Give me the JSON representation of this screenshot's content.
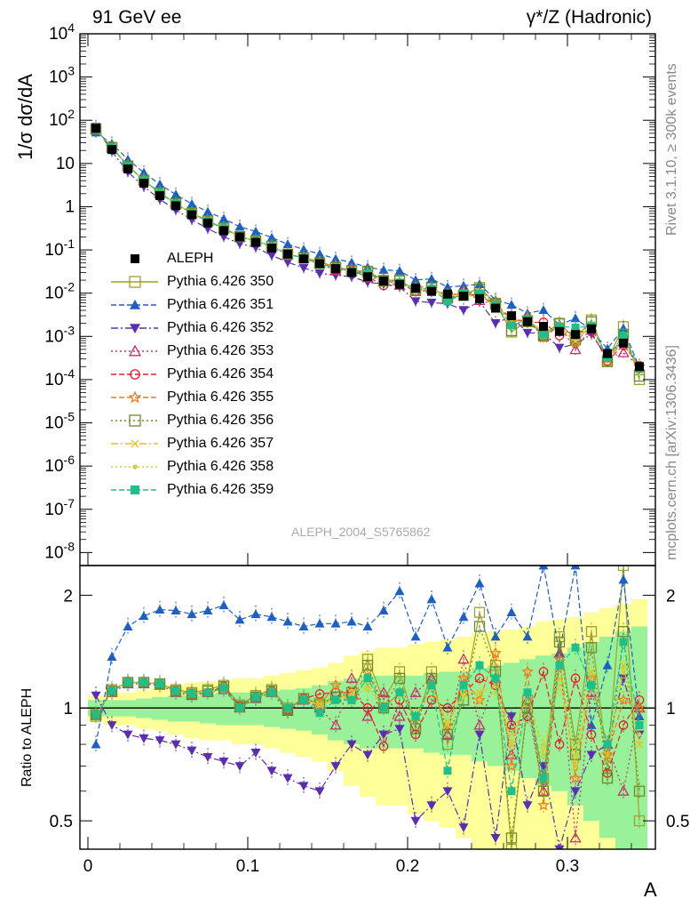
{
  "header": {
    "left_title": "91 GeV ee",
    "right_title": "γ*/Z (Hadronic)",
    "side_note_top": "Rivet 3.1.10, ≥ 300k events",
    "side_note_bottom": "mcplots.cern.ch [arXiv:1306.3436]",
    "analysis_tag": "ALEPH_2004_S5765862"
  },
  "axes": {
    "main_ylabel": "1/σ dσ/dA",
    "ratio_ylabel": "Ratio to ALEPH",
    "xlabel": "A",
    "main_yticks": [
      "10^4",
      "10^3",
      "10^2",
      "10",
      "1",
      "10^-1",
      "10^-2",
      "10^-3",
      "10^-4",
      "10^-5",
      "10^-6",
      "10^-7",
      "10^-8"
    ],
    "ratio_yticks": [
      "0.5",
      "1",
      "2"
    ],
    "xticks": [
      "0",
      "0.1",
      "0.2",
      "0.3"
    ]
  },
  "chart_data": {
    "type": "scatter",
    "x_scale": "linear",
    "main_y_scale": "log",
    "ratio_y_scale": "log",
    "xlim": [
      -0.005,
      0.355
    ],
    "main_ylim": [
      5e-09,
      10000
    ],
    "ratio_ylim": [
      0.42,
      2.4
    ],
    "x": [
      0.005,
      0.015,
      0.025,
      0.035,
      0.045,
      0.055,
      0.065,
      0.075,
      0.085,
      0.095,
      0.105,
      0.115,
      0.125,
      0.135,
      0.145,
      0.155,
      0.165,
      0.175,
      0.185,
      0.195,
      0.205,
      0.215,
      0.225,
      0.235,
      0.245,
      0.255,
      0.265,
      0.275,
      0.285,
      0.295,
      0.305,
      0.315,
      0.325,
      0.335,
      0.345
    ],
    "reference": {
      "name": "ALEPH",
      "values": [
        65,
        21,
        7.5,
        3.5,
        1.8,
        1.05,
        0.65,
        0.42,
        0.28,
        0.2,
        0.15,
        0.11,
        0.08,
        0.062,
        0.048,
        0.037,
        0.03,
        0.024,
        0.019,
        0.016,
        0.013,
        0.011,
        0.0095,
        0.0085,
        0.0075,
        0.0045,
        0.003,
        0.0022,
        0.0017,
        0.0013,
        0.0011,
        0.0015,
        0.0004,
        0.0007,
        0.0002
      ],
      "ratio_band_inner": [
        0.05,
        0.05,
        0.05,
        0.06,
        0.07,
        0.08,
        0.08,
        0.09,
        0.1,
        0.1,
        0.1,
        0.11,
        0.12,
        0.13,
        0.15,
        0.18,
        0.2,
        0.22,
        0.22,
        0.22,
        0.22,
        0.24,
        0.25,
        0.25,
        0.28,
        0.3,
        0.32,
        0.35,
        0.38,
        0.4,
        0.45,
        0.5,
        0.55,
        0.6,
        0.65
      ],
      "ratio_band_outer": [
        0.08,
        0.1,
        0.1,
        0.12,
        0.13,
        0.15,
        0.17,
        0.18,
        0.18,
        0.2,
        0.2,
        0.22,
        0.24,
        0.26,
        0.28,
        0.32,
        0.38,
        0.42,
        0.45,
        0.45,
        0.48,
        0.5,
        0.52,
        0.55,
        0.58,
        0.6,
        0.62,
        0.65,
        0.7,
        0.72,
        0.75,
        0.8,
        0.85,
        0.9,
        0.95
      ]
    },
    "series": [
      {
        "name": "Pythia 6.426 350",
        "color": "#a0a030",
        "marker": "open-square",
        "line": "solid",
        "ratio": [
          0.95,
          1.12,
          1.17,
          1.17,
          1.16,
          1.12,
          1.1,
          1.12,
          1.15,
          1.02,
          1.08,
          1.12,
          1.0,
          1.06,
          1.03,
          1.07,
          1.08,
          1.35,
          1.05,
          1.25,
          0.9,
          1.25,
          0.8,
          1.05,
          1.8,
          1.3,
          0.42,
          1.05,
          0.65,
          1.55,
          0.8,
          1.6,
          0.7,
          2.4,
          0.5
        ]
      },
      {
        "name": "Pythia 6.426 351",
        "color": "#1f5fbf",
        "marker": "filled-triangle-up",
        "line": "dashed",
        "ratio": [
          0.8,
          1.37,
          1.65,
          1.76,
          1.83,
          1.82,
          1.78,
          1.82,
          1.88,
          1.72,
          1.78,
          1.75,
          1.7,
          1.65,
          1.68,
          1.68,
          1.7,
          1.65,
          1.82,
          2.05,
          1.55,
          1.95,
          1.45,
          1.75,
          2.15,
          1.55,
          1.8,
          1.55,
          2.4,
          1.4,
          2.4,
          0.9,
          1.3,
          2.2,
          0.95
        ]
      },
      {
        "name": "Pythia 6.426 352",
        "color": "#5a2fae",
        "marker": "filled-triangle-down",
        "line": "dashdot",
        "ratio": [
          1.08,
          0.9,
          0.85,
          0.83,
          0.82,
          0.8,
          0.77,
          0.74,
          0.72,
          0.7,
          0.76,
          0.68,
          0.65,
          0.62,
          0.6,
          0.7,
          0.8,
          0.75,
          0.85,
          0.88,
          0.5,
          0.55,
          0.6,
          0.48,
          0.85,
          0.45,
          0.95,
          0.55,
          0.7,
          0.42,
          0.6,
          0.75,
          0.8,
          1.2,
          0.85
        ]
      },
      {
        "name": "Pythia 6.426 353",
        "color": "#c0306a",
        "marker": "open-triangle-up",
        "line": "dotted",
        "ratio": [
          0.96,
          1.1,
          1.16,
          1.16,
          1.15,
          1.1,
          1.08,
          1.1,
          1.12,
          1.0,
          1.06,
          1.1,
          0.98,
          1.05,
          1.0,
          0.9,
          1.2,
          0.95,
          1.1,
          0.95,
          1.1,
          1.2,
          0.85,
          1.35,
          0.9,
          1.2,
          0.75,
          1.05,
          0.6,
          1.4,
          0.45,
          1.1,
          0.8,
          0.6,
          1.0
        ]
      },
      {
        "name": "Pythia 6.426 354",
        "color": "#e0202a",
        "marker": "open-circle",
        "line": "dashed",
        "ratio": [
          0.96,
          1.11,
          1.17,
          1.17,
          1.16,
          1.11,
          1.09,
          1.1,
          1.14,
          1.01,
          1.07,
          1.11,
          0.99,
          1.06,
          1.09,
          1.1,
          1.1,
          1.0,
          0.79,
          1.05,
          0.85,
          1.05,
          1.0,
          1.1,
          1.2,
          1.15,
          0.9,
          0.95,
          1.25,
          0.8,
          1.2,
          0.85,
          0.67,
          0.9,
          1.05
        ]
      },
      {
        "name": "Pythia 6.426 355",
        "color": "#f07a1a",
        "marker": "star",
        "line": "dashed",
        "ratio": [
          0.96,
          1.11,
          1.17,
          1.17,
          1.16,
          1.11,
          1.09,
          1.1,
          1.13,
          1.0,
          1.07,
          1.1,
          1.0,
          1.05,
          1.02,
          1.15,
          1.05,
          1.25,
          1.0,
          1.1,
          0.95,
          1.15,
          0.9,
          1.2,
          1.05,
          1.4,
          0.7,
          1.25,
          0.55,
          1.35,
          0.65,
          1.2,
          0.75,
          1.05,
          1.0
        ]
      },
      {
        "name": "Pythia 6.426 356",
        "color": "#6b8c2a",
        "marker": "open-square",
        "line": "dotted",
        "ratio": [
          0.96,
          1.11,
          1.17,
          1.17,
          1.16,
          1.11,
          1.09,
          1.11,
          1.14,
          1.01,
          1.07,
          1.11,
          0.99,
          1.06,
          1.02,
          1.07,
          1.1,
          1.3,
          1.0,
          1.2,
          0.88,
          1.2,
          0.85,
          1.05,
          1.65,
          1.25,
          0.45,
          1.0,
          0.6,
          1.5,
          0.75,
          1.45,
          0.65,
          1.6,
          0.6
        ]
      },
      {
        "name": "Pythia 6.426 357",
        "color": "#e6c21a",
        "marker": "cross",
        "line": "dashdot",
        "ratio": [
          0.96,
          1.11,
          1.17,
          1.17,
          1.16,
          1.11,
          1.09,
          1.1,
          1.13,
          1.0,
          1.07,
          1.1,
          1.0,
          1.05,
          1.02,
          1.05,
          1.1,
          1.15,
          1.0,
          1.1,
          0.95,
          1.15,
          0.9,
          1.1,
          1.1,
          1.15,
          0.8,
          1.1,
          0.75,
          1.2,
          0.7,
          1.25,
          0.75,
          1.3,
          0.8
        ]
      },
      {
        "name": "Pythia 6.426 358",
        "color": "#c9d43a",
        "marker": "dot",
        "line": "dotted",
        "ratio": [
          0.96,
          1.11,
          1.17,
          1.17,
          1.16,
          1.11,
          1.09,
          1.1,
          1.13,
          1.0,
          1.07,
          1.1,
          1.0,
          1.05,
          1.02,
          1.05,
          1.08,
          1.12,
          1.0,
          1.08,
          0.97,
          1.12,
          0.92,
          1.08,
          1.05,
          1.1,
          0.85,
          1.05,
          0.8,
          1.15,
          0.75,
          1.2,
          0.8,
          1.25,
          0.85
        ]
      },
      {
        "name": "Pythia 6.426 359",
        "color": "#1fbf8a",
        "marker": "filled-square",
        "line": "dashed",
        "ratio": [
          0.96,
          1.11,
          1.17,
          1.17,
          1.16,
          1.11,
          1.09,
          1.1,
          1.13,
          1.0,
          1.07,
          1.1,
          1.0,
          1.05,
          0.97,
          1.05,
          1.05,
          1.2,
          1.0,
          1.1,
          0.95,
          1.15,
          0.68,
          1.15,
          1.3,
          1.2,
          0.6,
          1.1,
          0.65,
          1.3,
          1.45,
          1.15,
          0.8,
          1.5,
          0.9
        ]
      }
    ]
  }
}
